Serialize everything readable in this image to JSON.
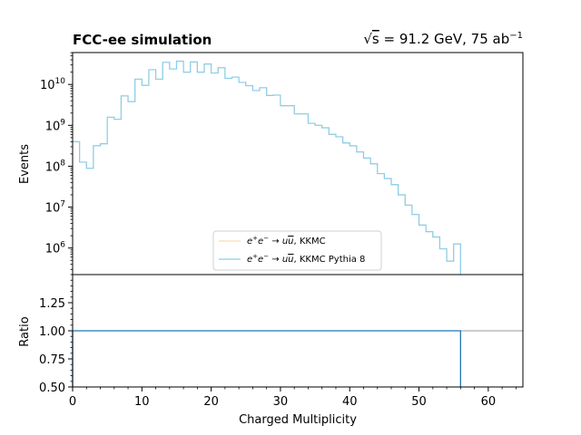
{
  "chart_data": [
    {
      "type": "step",
      "title_left": "FCC-ee simulation",
      "title_right_sqrt": "s",
      "title_right_rest": " = 91.2 GeV, 75 ab",
      "title_right_exp": "−1",
      "ylabel": "Events",
      "yscale": "log",
      "xlim": [
        0,
        65
      ],
      "ylim_exp": [
        5.35,
        10.78
      ],
      "y_tick_labels": [
        {
          "base": "10",
          "exp": "6",
          "logv": 6
        },
        {
          "base": "10",
          "exp": "7",
          "logv": 7
        },
        {
          "base": "10",
          "exp": "8",
          "logv": 8
        },
        {
          "base": "10",
          "exp": "9",
          "logv": 9
        },
        {
          "base": "10",
          "exp": "10",
          "logv": 10
        }
      ],
      "bin_width": 1,
      "bin_edges_start": 0,
      "log10_values": [
        8.6,
        8.1,
        7.95,
        8.5,
        8.55,
        9.2,
        9.15,
        9.72,
        9.58,
        10.13,
        9.98,
        10.36,
        10.13,
        10.54,
        10.38,
        10.57,
        10.3,
        10.55,
        10.3,
        10.5,
        10.28,
        10.41,
        10.15,
        10.18,
        10.05,
        9.97,
        9.85,
        9.92,
        9.73,
        9.74,
        9.48,
        9.48,
        9.28,
        9.28,
        9.05,
        9.0,
        8.94,
        8.78,
        8.72,
        8.57,
        8.5,
        8.35,
        8.2,
        8.06,
        7.82,
        7.7,
        7.55,
        7.3,
        7.05,
        6.82,
        6.56,
        6.4,
        6.27,
        5.98,
        5.68,
        6.1
      ],
      "legend": {
        "placement": "lower-center",
        "entries": [
          {
            "label_main": "e",
            "label_text": "KKMC",
            "color": "#fdd9b5"
          },
          {
            "label_main": "e",
            "label_text": "KKMC Pythia 8",
            "color": "#87ceeb"
          }
        ]
      },
      "series": [
        {
          "label": "KKMC",
          "color": "#fdd9b5"
        },
        {
          "label": "KKMC Pythia 8",
          "color": "#87ceeb"
        }
      ]
    },
    {
      "type": "step",
      "ylabel": "Ratio",
      "xlabel": "Charged Multiplicity",
      "xlim": [
        0,
        65
      ],
      "ylim": [
        0.5,
        1.5
      ],
      "x_ticks": [
        0,
        10,
        20,
        30,
        40,
        50,
        60
      ],
      "x_tick_labels": [
        "0",
        "10",
        "20",
        "30",
        "40",
        "50",
        "60"
      ],
      "y_ticks": [
        0.5,
        0.75,
        1.0,
        1.25
      ],
      "y_tick_labels": [
        "0.50",
        "0.75",
        "1.00",
        "1.25"
      ],
      "reference_line": 1.0,
      "ratio_value": 1.0,
      "ratio_x_range": [
        0,
        56
      ],
      "ratio_color": "#1f77b4"
    }
  ]
}
